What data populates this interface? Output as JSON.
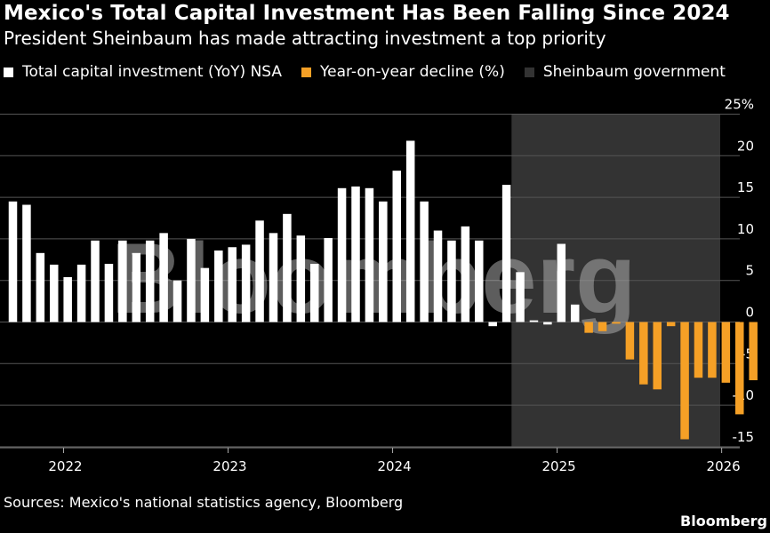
{
  "header": {
    "title": "Mexico's Total Capital Investment Has Been Falling Since 2024",
    "subtitle": "President Sheinbaum has made attracting investment a top priority"
  },
  "legend": [
    {
      "label": "Total capital investment (YoY) NSA",
      "color": "#ffffff"
    },
    {
      "label": "Year-on-year decline (%)",
      "color": "#f5a026"
    },
    {
      "label": "Sheinbaum government",
      "color": "#333333"
    }
  ],
  "footer": {
    "source": "Sources: Mexico's national statistics agency, Bloomberg",
    "brand": "Bloomberg"
  },
  "watermark": "Bloomberg",
  "chart_data": {
    "type": "bar",
    "ylim": [
      -15,
      25
    ],
    "yticks": [
      25,
      20,
      15,
      10,
      5,
      0,
      -5,
      -10,
      -15
    ],
    "ytick_labels": [
      "25%",
      "20",
      "15",
      "10",
      "5",
      "0",
      "-5",
      "-10",
      "-15"
    ],
    "x_tick_labels": [
      "2022",
      "2023",
      "2024",
      "2025",
      "2026"
    ],
    "start_month": "2021-09",
    "months": [
      "2021-09",
      "2021-10",
      "2021-11",
      "2021-12",
      "2022-01",
      "2022-02",
      "2022-03",
      "2022-04",
      "2022-05",
      "2022-06",
      "2022-07",
      "2022-08",
      "2022-09",
      "2022-10",
      "2022-11",
      "2022-12",
      "2023-01",
      "2023-02",
      "2023-03",
      "2023-04",
      "2023-05",
      "2023-06",
      "2023-07",
      "2023-08",
      "2023-09",
      "2023-10",
      "2023-11",
      "2023-12",
      "2024-01",
      "2024-02",
      "2024-03",
      "2024-04",
      "2024-05",
      "2024-06",
      "2024-07",
      "2024-08",
      "2024-09",
      "2024-10",
      "2024-11",
      "2024-12",
      "2025-01",
      "2025-02",
      "2025-03",
      "2025-04",
      "2025-05",
      "2025-06",
      "2025-07",
      "2025-08",
      "2025-09",
      "2025-10",
      "2025-11",
      "2025-12",
      "2026-01",
      "2026-02",
      "2026-03"
    ],
    "series": [
      {
        "name": "Total capital investment (YoY) NSA",
        "color": "#ffffff",
        "values": [
          14.5,
          14.1,
          8.3,
          6.9,
          5.4,
          6.9,
          9.8,
          7.0,
          9.8,
          8.3,
          9.8,
          10.7,
          5.0,
          10.0,
          6.5,
          8.6,
          9.0,
          9.3,
          12.2,
          10.7,
          13.0,
          10.4,
          7.0,
          10.1,
          16.1,
          16.3,
          16.1,
          14.5,
          18.2,
          21.8,
          14.5,
          11.0,
          9.8,
          11.5,
          9.8,
          -0.5,
          16.5,
          6.0,
          0.2,
          -0.3,
          9.4,
          2.1,
          null,
          null,
          null,
          null,
          null,
          null,
          null,
          null,
          null,
          null,
          null,
          null,
          null
        ]
      },
      {
        "name": "Year-on-year decline (%)",
        "color": "#f5a026",
        "values": [
          null,
          null,
          null,
          null,
          null,
          null,
          null,
          null,
          null,
          null,
          null,
          null,
          null,
          null,
          null,
          null,
          null,
          null,
          null,
          null,
          null,
          null,
          null,
          null,
          null,
          null,
          null,
          null,
          null,
          null,
          null,
          null,
          null,
          null,
          null,
          null,
          null,
          null,
          null,
          null,
          null,
          null,
          -1.3,
          -1.1,
          -0.2,
          -4.5,
          -7.5,
          -8.1,
          -0.5,
          -14.1,
          -6.7,
          -6.7,
          -7.3,
          -11.1,
          -7.0
        ]
      }
    ],
    "shaded_period": {
      "label": "Sheinbaum government",
      "start": "2024-10",
      "end": "2026-03",
      "color": "#333333"
    },
    "grid": true
  }
}
